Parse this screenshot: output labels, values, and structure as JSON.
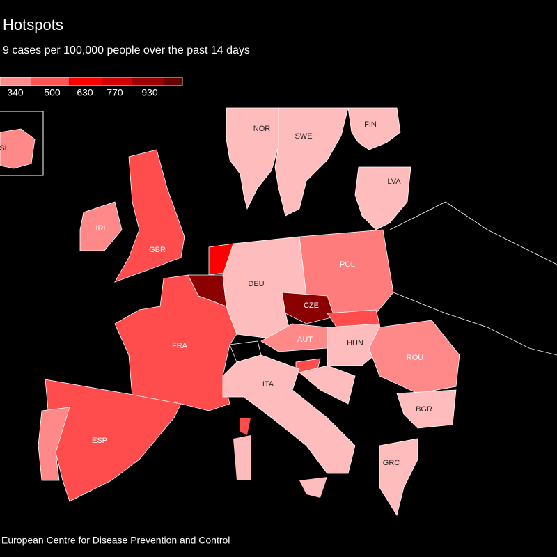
{
  "header": {
    "title": "Hotspots",
    "subtitle": "9 cases per 100,000 people over the past 14 days"
  },
  "legend": {
    "ticks": [
      340,
      500,
      630,
      770,
      930
    ],
    "colors": [
      "#ffc4c4",
      "#ff8c8c",
      "#ff5555",
      "#ff0000",
      "#d20000",
      "#9c0000",
      "#6a0000"
    ]
  },
  "regions": [
    {
      "label": "NOR",
      "color": "#ffbcbc"
    },
    {
      "label": "SWE",
      "color": "#ffbcbc"
    },
    {
      "label": "FIN",
      "color": "#ffbcbc"
    },
    {
      "label": "LVA",
      "color": "#ffbcbc"
    },
    {
      "label": "SL",
      "color": "#ff8888"
    },
    {
      "label": "IRL",
      "color": "#ff8888"
    },
    {
      "label": "GBR",
      "color": "#ff4d4d"
    },
    {
      "color": "#ff0000"
    },
    {
      "color": "#8b0000"
    },
    {
      "label": "DEU",
      "color": "#ffbcbc"
    },
    {
      "label": "POL",
      "color": "#ff7c7c"
    },
    {
      "label": "CZE",
      "color": "#8b0000"
    },
    {
      "color": "#ff4d4d"
    },
    {
      "label": "AUT",
      "color": "#ff8888"
    },
    {
      "label": "HUN",
      "color": "#ffbcbc"
    },
    {
      "color": "#000000"
    },
    {
      "color": "#ff4d4d"
    },
    {
      "color": "#ffbcbc"
    },
    {
      "label": "FRA",
      "color": "#ff4d4d"
    },
    {
      "label": "ITA",
      "color": "#ffbcbc"
    },
    {
      "label": "ESP",
      "color": "#ff4d4d"
    },
    {
      "color": "#ff8888"
    },
    {
      "label": "ROU",
      "color": "#ff8888"
    },
    {
      "label": "BGR",
      "color": "#ffbcbc"
    },
    {
      "label": "GRC",
      "color": "#ffbcbc"
    }
  ],
  "source": "European Centre for Disease Prevention and Control"
}
